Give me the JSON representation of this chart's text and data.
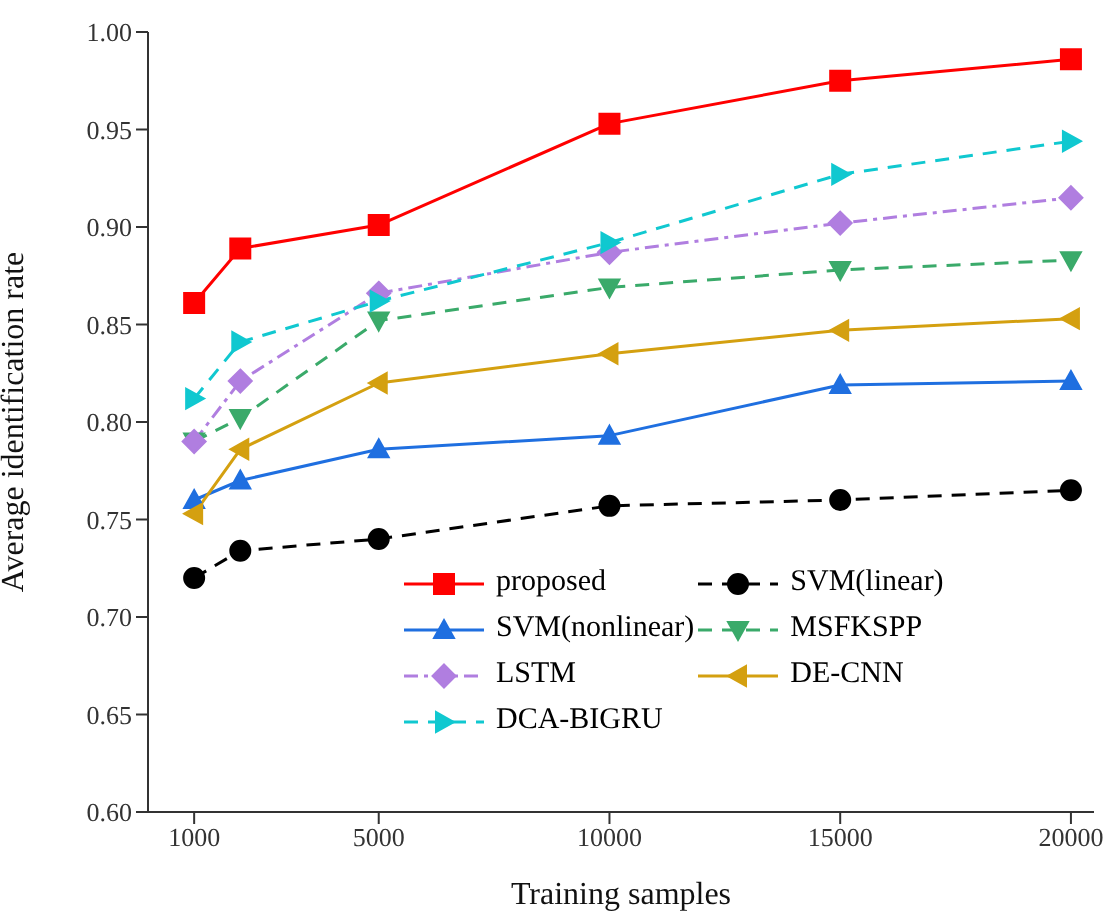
{
  "chart_data": {
    "type": "line",
    "xlabel": "Training samples",
    "ylabel": "Average identification rate",
    "x": [
      1000,
      2000,
      5000,
      10000,
      15000,
      20000
    ],
    "xlim": [
      0,
      20500
    ],
    "xticks": [
      1000,
      5000,
      10000,
      15000,
      20000
    ],
    "ylim": [
      0.6,
      1.0
    ],
    "yticks": [
      {
        "value": 0.6,
        "label": "0.60"
      },
      {
        "value": 0.65,
        "label": "0.65"
      },
      {
        "value": 0.7,
        "label": "0.70"
      },
      {
        "value": 0.75,
        "label": "0.75"
      },
      {
        "value": 0.8,
        "label": "0.80"
      },
      {
        "value": 0.85,
        "label": "0.85"
      },
      {
        "value": 0.9,
        "label": "0.90"
      },
      {
        "value": 0.95,
        "label": "0.95"
      },
      {
        "value": 1.0,
        "label": "1.00"
      }
    ],
    "grid": false,
    "legend": "bottom",
    "series": [
      {
        "name": "proposed",
        "color": "#ff0000",
        "marker": "square",
        "line_style": "solid",
        "values": [
          0.861,
          0.889,
          0.901,
          0.953,
          0.975,
          0.986
        ]
      },
      {
        "name": "SVM(linear)",
        "color": "#000000",
        "marker": "circle",
        "line_style": "dashed",
        "values": [
          0.72,
          0.734,
          0.74,
          0.757,
          0.76,
          0.765
        ]
      },
      {
        "name": "SVM(nonlinear)",
        "color": "#1f6fe0",
        "marker": "triangle",
        "line_style": "solid",
        "values": [
          0.76,
          0.77,
          0.786,
          0.793,
          0.819,
          0.821
        ]
      },
      {
        "name": "MSFKSPP",
        "color": "#3aaa6a",
        "marker": "triangle-down",
        "line_style": "dashed",
        "values": [
          0.79,
          0.802,
          0.852,
          0.869,
          0.878,
          0.883
        ]
      },
      {
        "name": "LSTM",
        "color": "#b07ee0",
        "marker": "diamond",
        "line_style": "dashdot",
        "values": [
          0.79,
          0.821,
          0.866,
          0.887,
          0.902,
          0.915
        ]
      },
      {
        "name": "DE-CNN",
        "color": "#d4a010",
        "marker": "triangle-left",
        "line_style": "solid",
        "values": [
          0.753,
          0.786,
          0.82,
          0.835,
          0.847,
          0.853
        ]
      },
      {
        "name": "DCA-BIGRU",
        "color": "#10c8d0",
        "marker": "triangle-right",
        "line_style": "dashed",
        "values": [
          0.812,
          0.841,
          0.862,
          0.892,
          0.927,
          0.944
        ]
      }
    ]
  }
}
